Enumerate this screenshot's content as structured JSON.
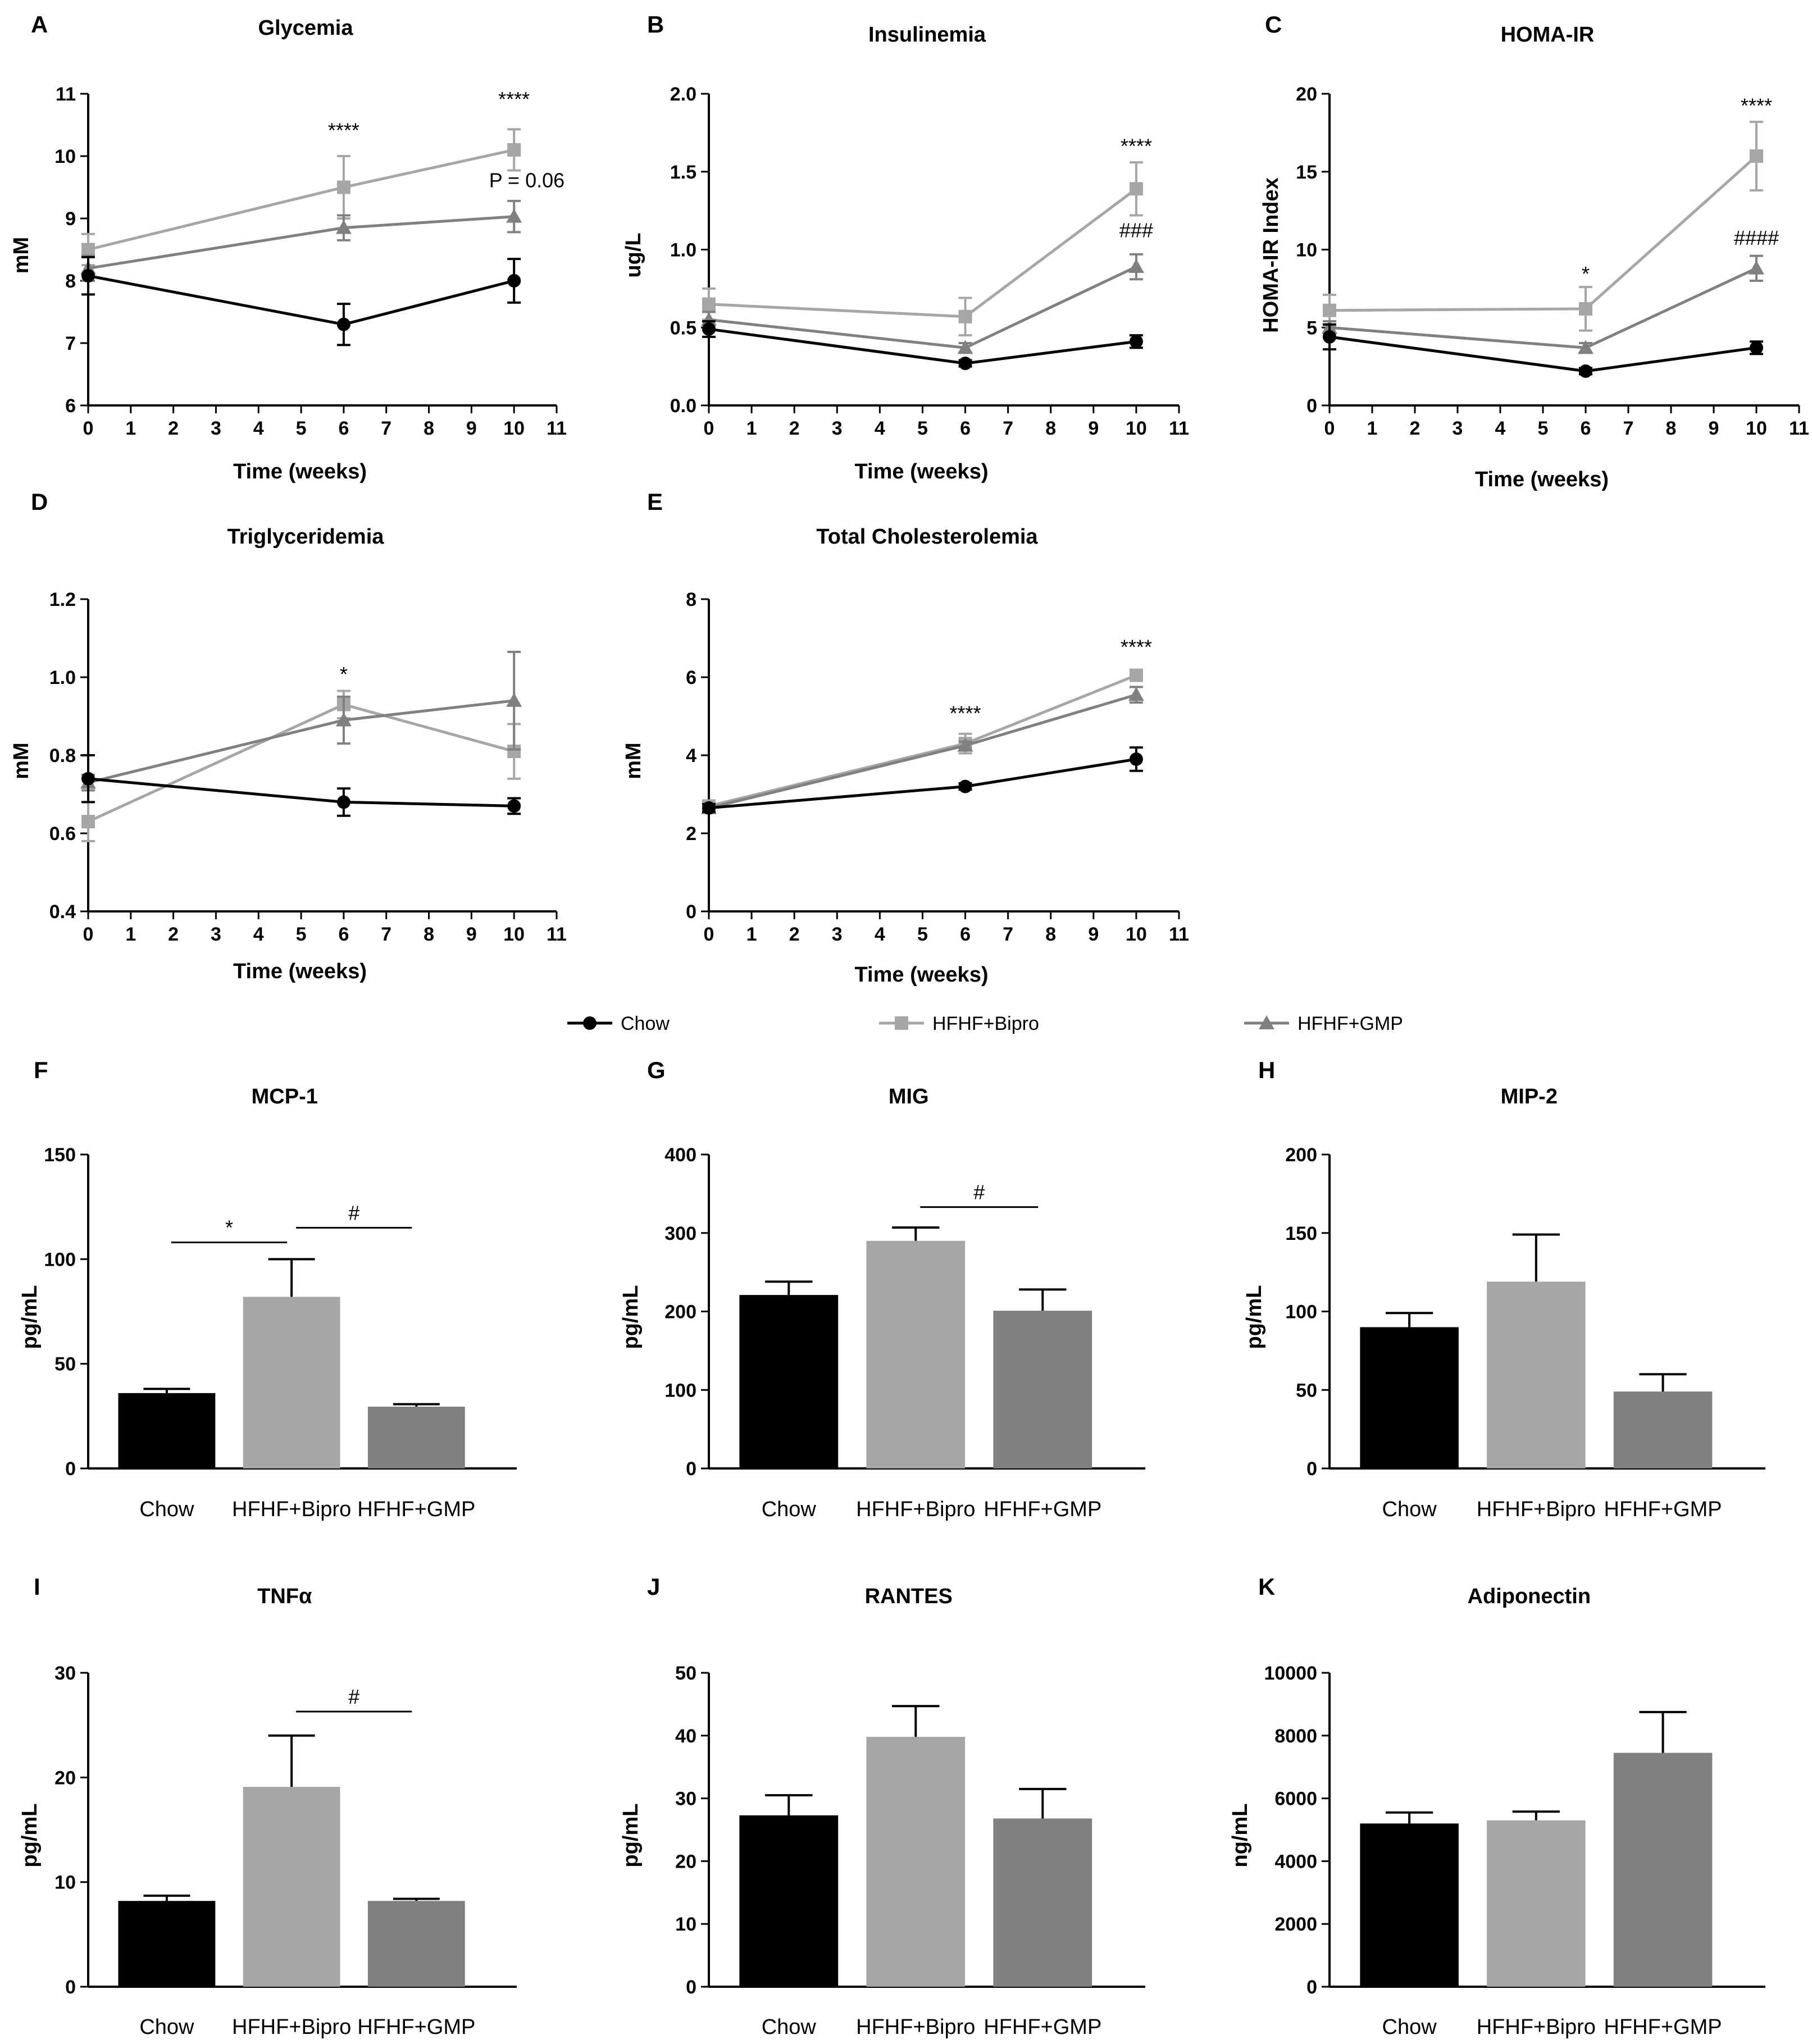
{
  "legend": [
    {
      "name": "Chow",
      "color": "#000000",
      "marker": "circle"
    },
    {
      "name": "HFHF+Bipro",
      "color": "#a6a6a6",
      "marker": "square"
    },
    {
      "name": "HFHF+GMP",
      "color": "#808080",
      "marker": "triangle"
    }
  ],
  "chart_data": [
    {
      "panel": "A",
      "type": "line",
      "title": "Glycemia",
      "xlabel": "Time (weeks)",
      "ylabel": "mM",
      "xlim": [
        0,
        11
      ],
      "xticks": [
        0,
        1,
        2,
        3,
        4,
        5,
        6,
        7,
        8,
        9,
        10,
        11
      ],
      "ylim": [
        6,
        11
      ],
      "yticks": [
        6,
        7,
        8,
        9,
        10,
        11
      ],
      "ytick_labels": [
        "6",
        "7",
        "8",
        "9",
        "10",
        "11"
      ],
      "x": [
        0,
        6,
        10
      ],
      "series": [
        {
          "name": "Chow",
          "values": [
            8.08,
            7.3,
            8.0
          ],
          "err": [
            0.3,
            0.33,
            0.35
          ]
        },
        {
          "name": "HFHF+Bipro",
          "values": [
            8.5,
            9.5,
            10.1
          ],
          "err": [
            0.25,
            0.5,
            0.33
          ]
        },
        {
          "name": "HFHF+GMP",
          "values": [
            8.2,
            8.85,
            9.03
          ],
          "err": [
            0.2,
            0.2,
            0.25
          ]
        }
      ],
      "annotations": [
        {
          "text": "****",
          "x": 6,
          "y": 10.3
        },
        {
          "text": "****",
          "x": 10,
          "y": 10.8
        },
        {
          "text": "P = 0.06",
          "x": 10.3,
          "y": 9.5
        }
      ]
    },
    {
      "panel": "B",
      "type": "line",
      "title": "Insulinemia",
      "xlabel": "Time (weeks)",
      "ylabel": "ug/L",
      "xlim": [
        0,
        11
      ],
      "xticks": [
        0,
        1,
        2,
        3,
        4,
        5,
        6,
        7,
        8,
        9,
        10,
        11
      ],
      "ylim": [
        0,
        2.0
      ],
      "yticks": [
        0,
        0.5,
        1.0,
        1.5,
        2.0
      ],
      "ytick_labels": [
        "0.0",
        "0.5",
        "1.0",
        "1.5",
        "2.0"
      ],
      "x": [
        0,
        6,
        10
      ],
      "series": [
        {
          "name": "Chow",
          "values": [
            0.49,
            0.27,
            0.41
          ],
          "err": [
            0.05,
            0.02,
            0.04
          ]
        },
        {
          "name": "HFHF+Bipro",
          "values": [
            0.65,
            0.57,
            1.39
          ],
          "err": [
            0.1,
            0.12,
            0.17
          ]
        },
        {
          "name": "HFHF+GMP",
          "values": [
            0.55,
            0.37,
            0.89
          ],
          "err": [
            0.05,
            0.03,
            0.08
          ]
        }
      ],
      "annotations": [
        {
          "text": "****",
          "x": 10,
          "y": 1.62
        },
        {
          "text": "###",
          "x": 10,
          "y": 1.08
        }
      ]
    },
    {
      "panel": "C",
      "type": "line",
      "title": "HOMA-IR",
      "xlabel": "Time (weeks)",
      "ylabel": "HOMA-IR Index",
      "xlim": [
        0,
        11
      ],
      "xticks": [
        0,
        1,
        2,
        3,
        4,
        5,
        6,
        7,
        8,
        9,
        10,
        11
      ],
      "ylim": [
        0,
        20
      ],
      "yticks": [
        0,
        5,
        10,
        15,
        20
      ],
      "ytick_labels": [
        "0",
        "5",
        "10",
        "15",
        "20"
      ],
      "x": [
        0,
        6,
        10
      ],
      "series": [
        {
          "name": "Chow",
          "values": [
            4.4,
            2.2,
            3.7
          ],
          "err": [
            0.8,
            0.2,
            0.4
          ]
        },
        {
          "name": "HFHF+Bipro",
          "values": [
            6.1,
            6.2,
            16.0
          ],
          "err": [
            1.0,
            1.4,
            2.2
          ]
        },
        {
          "name": "HFHF+GMP",
          "values": [
            5.0,
            3.7,
            8.8
          ],
          "err": [
            0.4,
            0.3,
            0.8
          ]
        }
      ],
      "annotations": [
        {
          "text": "*",
          "x": 6,
          "y": 8.0
        },
        {
          "text": "****",
          "x": 10,
          "y": 18.8
        },
        {
          "text": "####",
          "x": 10,
          "y": 10.3
        }
      ]
    },
    {
      "panel": "D",
      "type": "line",
      "title": "Triglyceridemia",
      "xlabel": "Time (weeks)",
      "ylabel": "mM",
      "xlim": [
        0,
        11
      ],
      "xticks": [
        0,
        1,
        2,
        3,
        4,
        5,
        6,
        7,
        8,
        9,
        10,
        11
      ],
      "ylim": [
        0.4,
        1.2
      ],
      "yticks": [
        0.4,
        0.6,
        0.8,
        1.0,
        1.2
      ],
      "ytick_labels": [
        "0.4",
        "0.6",
        "0.8",
        "1.0",
        "1.2"
      ],
      "x": [
        0,
        6,
        10
      ],
      "series": [
        {
          "name": "Chow",
          "values": [
            0.74,
            0.68,
            0.67
          ],
          "err": [
            0.06,
            0.035,
            0.02
          ]
        },
        {
          "name": "HFHF+Bipro",
          "values": [
            0.63,
            0.93,
            0.81
          ],
          "err": [
            0.05,
            0.035,
            0.07
          ]
        },
        {
          "name": "HFHF+GMP",
          "values": [
            0.73,
            0.89,
            0.94
          ],
          "err": [
            0.02,
            0.06,
            0.125
          ]
        }
      ],
      "annotations": [
        {
          "text": "*",
          "x": 6,
          "y": 0.99
        }
      ]
    },
    {
      "panel": "E",
      "type": "line",
      "title": "Total Cholesterolemia",
      "xlabel": "Time (weeks)",
      "ylabel": "mM",
      "xlim": [
        0,
        11
      ],
      "xticks": [
        0,
        1,
        2,
        3,
        4,
        5,
        6,
        7,
        8,
        9,
        10,
        11
      ],
      "ylim": [
        0,
        8
      ],
      "yticks": [
        0,
        2,
        4,
        6,
        8
      ],
      "ytick_labels": [
        "0",
        "2",
        "4",
        "6",
        "8"
      ],
      "x": [
        0,
        6,
        10
      ],
      "series": [
        {
          "name": "Chow",
          "values": [
            2.65,
            3.2,
            3.9
          ],
          "err": [
            0.1,
            0.08,
            0.3
          ]
        },
        {
          "name": "HFHF+Bipro",
          "values": [
            2.7,
            4.3,
            6.05
          ],
          "err": [
            0.1,
            0.25,
            0.1
          ]
        },
        {
          "name": "HFHF+GMP",
          "values": [
            2.65,
            4.25,
            5.55
          ],
          "err": [
            0.1,
            0.1,
            0.2
          ]
        }
      ],
      "annotations": [
        {
          "text": "****",
          "x": 6,
          "y": 4.9
        },
        {
          "text": "****",
          "x": 10,
          "y": 6.6
        }
      ]
    },
    {
      "panel": "F",
      "type": "bar",
      "title": "MCP-1",
      "ylabel": "pg/mL",
      "categories": [
        "Chow",
        "HFHF+Bipro",
        "HFHF+GMP"
      ],
      "ylim": [
        0,
        150
      ],
      "yticks": [
        0,
        50,
        100,
        150
      ],
      "ytick_labels": [
        "0",
        "50",
        "100",
        "150"
      ],
      "values": [
        36,
        82,
        29.5
      ],
      "err": [
        2,
        18,
        1.2
      ],
      "brackets": [
        {
          "from": 0,
          "to": 1,
          "y": 108,
          "text": "*"
        },
        {
          "from": 1,
          "to": 2,
          "y": 115,
          "text": "#"
        }
      ]
    },
    {
      "panel": "G",
      "type": "bar",
      "title": "MIG",
      "ylabel": "pg/mL",
      "categories": [
        "Chow",
        "HFHF+Bipro",
        "HFHF+GMP"
      ],
      "ylim": [
        0,
        400
      ],
      "yticks": [
        0,
        100,
        200,
        300,
        400
      ],
      "ytick_labels": [
        "0",
        "100",
        "200",
        "300",
        "400"
      ],
      "values": [
        221,
        290,
        201
      ],
      "err": [
        17,
        17,
        27
      ],
      "brackets": [
        {
          "from": 1,
          "to": 2,
          "y": 333,
          "text": "#"
        }
      ]
    },
    {
      "panel": "H",
      "type": "bar",
      "title": "MIP-2",
      "ylabel": "pg/mL",
      "categories": [
        "Chow",
        "HFHF+Bipro",
        "HFHF+GMP"
      ],
      "ylim": [
        0,
        200
      ],
      "yticks": [
        0,
        50,
        100,
        150,
        200
      ],
      "ytick_labels": [
        "0",
        "50",
        "100",
        "150",
        "200"
      ],
      "values": [
        90,
        119,
        49
      ],
      "err": [
        9,
        30,
        11
      ],
      "brackets": []
    },
    {
      "panel": "I",
      "type": "bar",
      "title": "TNFα",
      "ylabel": "pg/mL",
      "categories": [
        "Chow",
        "HFHF+Bipro",
        "HFHF+GMP"
      ],
      "ylim": [
        0,
        30
      ],
      "yticks": [
        0,
        10,
        20,
        30
      ],
      "ytick_labels": [
        "0",
        "10",
        "20",
        "30"
      ],
      "values": [
        8.2,
        19.1,
        8.2
      ],
      "err": [
        0.5,
        4.9,
        0.2
      ],
      "brackets": [
        {
          "from": 1,
          "to": 2,
          "y": 26.3,
          "text": "#"
        }
      ]
    },
    {
      "panel": "J",
      "type": "bar",
      "title": "RANTES",
      "ylabel": "pg/mL",
      "categories": [
        "Chow",
        "HFHF+Bipro",
        "HFHF+GMP"
      ],
      "ylim": [
        0,
        50
      ],
      "yticks": [
        0,
        10,
        20,
        30,
        40,
        50
      ],
      "ytick_labels": [
        "0",
        "10",
        "20",
        "30",
        "40",
        "50"
      ],
      "values": [
        27.3,
        39.8,
        26.8
      ],
      "err": [
        3.2,
        4.9,
        4.7
      ],
      "brackets": []
    },
    {
      "panel": "K",
      "type": "bar",
      "title": "Adiponectin",
      "ylabel": "ng/mL",
      "categories": [
        "Chow",
        "HFHF+Bipro",
        "HFHF+GMP"
      ],
      "ylim": [
        0,
        10000
      ],
      "yticks": [
        0,
        2000,
        4000,
        6000,
        8000,
        10000
      ],
      "ytick_labels": [
        "0",
        "2000",
        "4000",
        "6000",
        "8000",
        "10000"
      ],
      "values": [
        5200,
        5300,
        7450
      ],
      "err": [
        350,
        280,
        1300
      ],
      "brackets": []
    }
  ]
}
